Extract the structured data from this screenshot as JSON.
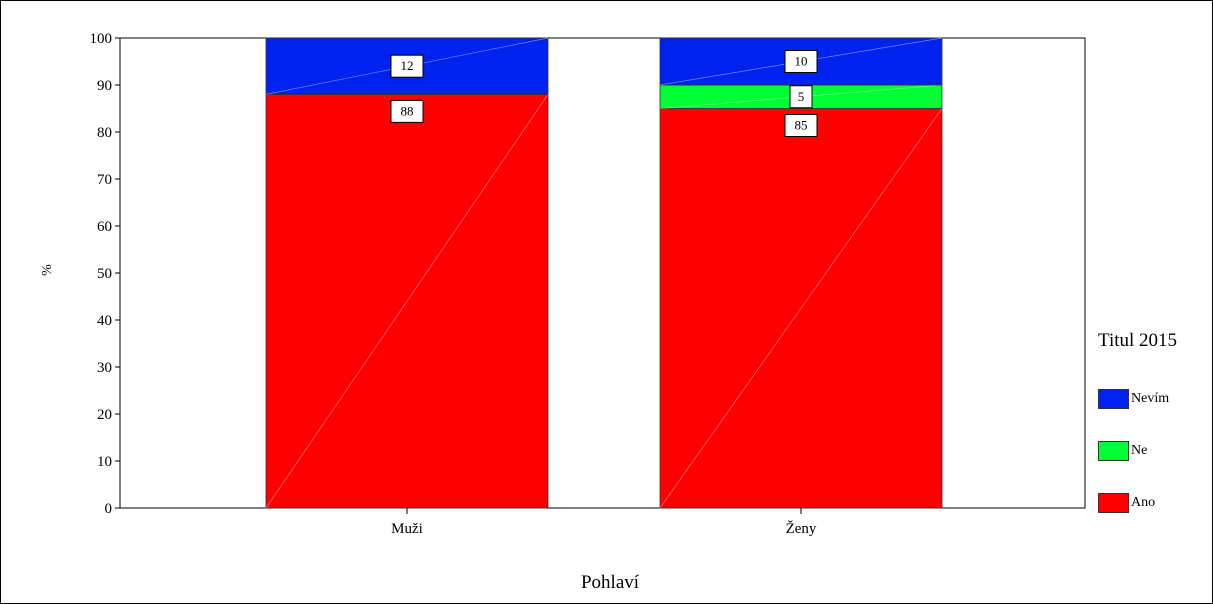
{
  "chart_data": {
    "type": "bar",
    "stacked": true,
    "categories": [
      "Muži",
      "Ženy"
    ],
    "series": [
      {
        "name": "Ano",
        "color": "#ff0000",
        "values": [
          88,
          85
        ],
        "labels": [
          "88",
          "85"
        ]
      },
      {
        "name": "Ne",
        "color": "#00ff33",
        "values": [
          0,
          5
        ],
        "labels": [
          "",
          "5"
        ]
      },
      {
        "name": "Nevím",
        "color": "#0022ee",
        "values": [
          12,
          10
        ],
        "labels": [
          "12",
          "10"
        ]
      }
    ],
    "xlabel": "Pohlaví",
    "ylabel": "%",
    "ylim": [
      0,
      100
    ],
    "yticks": [
      "0",
      "10",
      "20",
      "30",
      "40",
      "50",
      "60",
      "70",
      "80",
      "90",
      "100"
    ],
    "legend": {
      "title": "Titul 2015",
      "placement": "right",
      "items": [
        "Nevím",
        "Ne",
        "Ano"
      ]
    },
    "grid": false
  }
}
